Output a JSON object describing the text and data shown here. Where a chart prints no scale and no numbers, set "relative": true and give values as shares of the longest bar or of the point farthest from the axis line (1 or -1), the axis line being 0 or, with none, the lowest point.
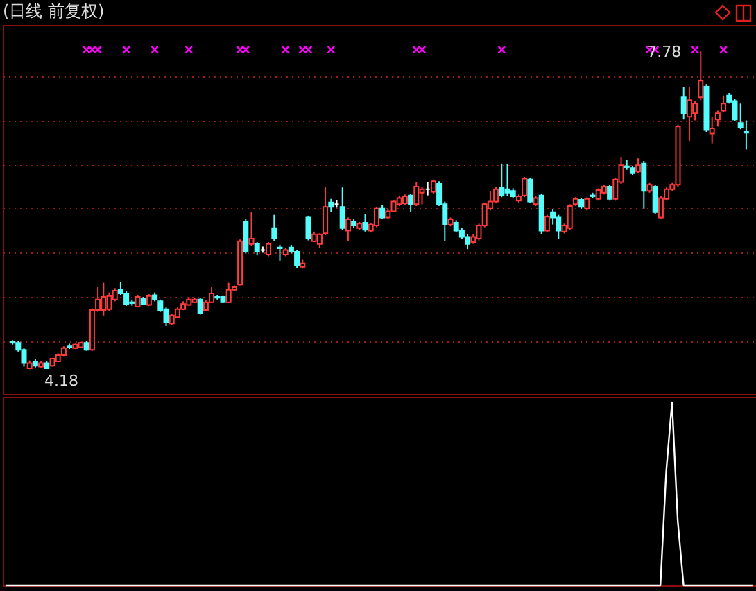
{
  "chart_data": [
    {
      "type": "candlestick",
      "title": "(日线 前复权)",
      "categories": [
        null,
        null,
        null,
        null,
        null,
        null,
        null,
        null,
        null,
        null,
        null,
        null,
        null,
        null,
        null,
        null,
        null,
        null,
        null,
        null,
        null,
        null,
        null,
        null,
        null,
        null,
        null,
        null,
        null,
        null,
        null,
        null,
        null,
        null,
        null,
        null,
        null,
        null,
        null,
        null,
        null,
        null,
        null,
        null,
        null,
        null,
        null,
        null,
        null,
        null,
        null,
        null,
        null,
        null,
        null,
        null,
        null,
        null,
        null,
        null,
        null,
        null,
        null,
        null,
        null,
        null,
        null,
        null,
        null,
        null,
        null,
        null,
        null,
        null,
        null,
        null,
        null,
        null,
        null,
        null,
        null,
        null,
        null,
        null,
        null,
        null,
        null,
        null,
        null,
        null,
        null,
        null,
        null,
        null,
        null,
        null,
        null,
        null,
        null,
        null,
        null,
        null,
        null,
        null,
        null,
        null,
        null,
        null,
        null,
        null,
        null,
        null,
        null,
        null,
        null,
        null,
        null,
        null,
        null,
        null,
        null,
        null,
        null,
        null,
        null,
        null,
        null,
        null,
        null,
        null
      ],
      "ohlc": [
        [
          4.49,
          4.51,
          4.46,
          4.48
        ],
        [
          4.48,
          4.5,
          4.38,
          4.4
        ],
        [
          4.4,
          4.42,
          4.21,
          4.25
        ],
        [
          4.19,
          4.28,
          4.18,
          4.25
        ],
        [
          4.27,
          4.3,
          4.2,
          4.22
        ],
        [
          4.21,
          4.27,
          4.2,
          4.25
        ],
        [
          4.25,
          4.27,
          4.19,
          4.19
        ],
        [
          4.22,
          4.31,
          4.21,
          4.3
        ],
        [
          4.27,
          4.36,
          4.26,
          4.34
        ],
        [
          4.34,
          4.44,
          4.33,
          4.42
        ],
        [
          4.44,
          4.47,
          4.41,
          4.43
        ],
        [
          4.42,
          4.47,
          4.41,
          4.46
        ],
        [
          4.43,
          4.49,
          4.42,
          4.48
        ],
        [
          4.48,
          4.5,
          4.39,
          4.4
        ],
        [
          4.4,
          4.87,
          4.39,
          4.85
        ],
        [
          4.85,
          5.11,
          4.83,
          4.97
        ],
        [
          4.85,
          5.16,
          4.79,
          5.0
        ],
        [
          4.86,
          5.05,
          4.84,
          5.01
        ],
        [
          4.97,
          5.1,
          4.95,
          5.07
        ],
        [
          5.08,
          5.17,
          5.02,
          5.04
        ],
        [
          5.04,
          5.07,
          4.9,
          4.92
        ],
        [
          4.94,
          4.97,
          4.9,
          4.93
        ],
        [
          4.89,
          5.02,
          4.88,
          5.0
        ],
        [
          4.98,
          5.0,
          4.91,
          4.92
        ],
        [
          4.91,
          5.03,
          4.9,
          5.01
        ],
        [
          5.02,
          5.05,
          4.95,
          4.97
        ],
        [
          4.95,
          4.97,
          4.83,
          4.85
        ],
        [
          4.86,
          4.88,
          4.67,
          4.71
        ],
        [
          4.7,
          4.81,
          4.68,
          4.79
        ],
        [
          4.77,
          4.88,
          4.76,
          4.86
        ],
        [
          4.86,
          4.95,
          4.85,
          4.92
        ],
        [
          4.91,
          5.0,
          4.9,
          4.97
        ],
        [
          4.94,
          4.99,
          4.93,
          4.97
        ],
        [
          4.97,
          4.99,
          4.8,
          4.82
        ],
        [
          4.85,
          4.96,
          4.84,
          4.94
        ],
        [
          4.94,
          5.11,
          4.93,
          5.04
        ],
        [
          5.0,
          5.02,
          4.97,
          4.99
        ],
        [
          5.0,
          5.01,
          4.93,
          4.94
        ],
        [
          4.94,
          5.16,
          4.93,
          5.08
        ],
        [
          5.08,
          5.13,
          5.07,
          5.11
        ],
        [
          5.14,
          5.65,
          5.13,
          5.63
        ],
        [
          5.85,
          5.88,
          5.49,
          5.51
        ],
        [
          5.6,
          5.96,
          5.58,
          5.66
        ],
        [
          5.6,
          5.62,
          5.47,
          5.51
        ],
        [
          5.53,
          5.57,
          5.5,
          5.53
        ],
        [
          5.48,
          5.62,
          5.46,
          5.6
        ],
        [
          5.78,
          5.93,
          5.63,
          5.66
        ],
        [
          5.56,
          5.59,
          5.41,
          5.55
        ],
        [
          5.48,
          5.55,
          5.46,
          5.53
        ],
        [
          5.56,
          5.59,
          5.49,
          5.51
        ],
        [
          5.51,
          5.53,
          5.33,
          5.36
        ],
        [
          5.34,
          5.42,
          5.32,
          5.38
        ],
        [
          5.9,
          5.92,
          5.64,
          5.66
        ],
        [
          5.63,
          5.74,
          5.62,
          5.71
        ],
        [
          5.6,
          5.72,
          5.55,
          5.71
        ],
        [
          5.72,
          6.24,
          5.7,
          6.02
        ],
        [
          6.07,
          6.11,
          5.96,
          6.02
        ],
        [
          6.05,
          6.1,
          6.01,
          6.05
        ],
        [
          6.02,
          6.24,
          5.76,
          5.78
        ],
        [
          5.75,
          5.9,
          5.63,
          5.88
        ],
        [
          5.85,
          5.88,
          5.78,
          5.81
        ],
        [
          5.78,
          5.85,
          5.76,
          5.83
        ],
        [
          5.84,
          5.94,
          5.74,
          5.76
        ],
        [
          5.75,
          5.84,
          5.73,
          5.82
        ],
        [
          5.81,
          6.02,
          5.79,
          6.0
        ],
        [
          6.0,
          6.04,
          5.88,
          5.9
        ],
        [
          5.9,
          5.99,
          5.88,
          5.97
        ],
        [
          5.97,
          6.1,
          5.96,
          6.08
        ],
        [
          6.05,
          6.14,
          6.03,
          6.12
        ],
        [
          6.06,
          6.16,
          6.04,
          6.14
        ],
        [
          6.15,
          6.17,
          5.96,
          6.05
        ],
        [
          6.05,
          6.3,
          6.03,
          6.25
        ],
        [
          6.18,
          6.25,
          6.05,
          6.22
        ],
        [
          6.22,
          6.3,
          6.15,
          6.22
        ],
        [
          6.19,
          6.33,
          6.17,
          6.31
        ],
        [
          6.28,
          6.31,
          6.03,
          6.05
        ],
        [
          6.05,
          6.08,
          5.63,
          5.82
        ],
        [
          5.82,
          5.9,
          5.8,
          5.88
        ],
        [
          5.84,
          5.87,
          5.73,
          5.75
        ],
        [
          5.75,
          5.78,
          5.66,
          5.68
        ],
        [
          5.68,
          5.71,
          5.54,
          5.6
        ],
        [
          5.62,
          5.71,
          5.6,
          5.68
        ],
        [
          5.66,
          5.83,
          5.64,
          5.81
        ],
        [
          5.81,
          6.07,
          5.79,
          6.05
        ],
        [
          6.0,
          6.2,
          5.98,
          6.08
        ],
        [
          6.08,
          6.25,
          6.06,
          6.22
        ],
        [
          6.24,
          6.51,
          6.13,
          6.15
        ],
        [
          6.22,
          6.51,
          6.14,
          6.18
        ],
        [
          6.2,
          6.23,
          6.12,
          6.14
        ],
        [
          6.09,
          6.16,
          6.07,
          6.14
        ],
        [
          6.15,
          6.36,
          6.13,
          6.34
        ],
        [
          6.33,
          6.35,
          6.06,
          6.08
        ],
        [
          6.05,
          6.14,
          6.03,
          6.12
        ],
        [
          6.15,
          6.17,
          5.71,
          5.75
        ],
        [
          5.75,
          5.93,
          5.73,
          5.91
        ],
        [
          5.96,
          5.99,
          5.82,
          5.9
        ],
        [
          5.9,
          5.93,
          5.66,
          5.75
        ],
        [
          5.74,
          5.83,
          5.72,
          5.81
        ],
        [
          5.78,
          6.05,
          5.76,
          6.03
        ],
        [
          6.05,
          6.13,
          6.03,
          6.11
        ],
        [
          6.1,
          6.12,
          6.0,
          6.02
        ],
        [
          6.0,
          6.13,
          5.98,
          6.11
        ],
        [
          6.15,
          6.18,
          6.12,
          6.14
        ],
        [
          6.11,
          6.23,
          6.09,
          6.21
        ],
        [
          6.18,
          6.27,
          6.16,
          6.25
        ],
        [
          6.25,
          6.27,
          6.09,
          6.11
        ],
        [
          6.11,
          6.35,
          6.09,
          6.33
        ],
        [
          6.3,
          6.58,
          6.28,
          6.49
        ],
        [
          6.48,
          6.55,
          6.44,
          6.47
        ],
        [
          6.46,
          6.48,
          6.38,
          6.4
        ],
        [
          6.42,
          6.57,
          6.4,
          6.49
        ],
        [
          6.51,
          6.54,
          6.0,
          6.2
        ],
        [
          6.2,
          6.29,
          6.18,
          6.27
        ],
        [
          6.25,
          6.27,
          5.94,
          5.96
        ],
        [
          5.9,
          6.14,
          5.88,
          6.12
        ],
        [
          6.11,
          6.24,
          6.09,
          6.22
        ],
        [
          6.22,
          6.29,
          6.2,
          6.27
        ],
        [
          6.27,
          6.95,
          6.25,
          6.93
        ],
        [
          7.26,
          7.38,
          7.01,
          7.08
        ],
        [
          7.04,
          7.38,
          6.77,
          7.23
        ],
        [
          7.08,
          7.22,
          7.0,
          7.19
        ],
        [
          7.26,
          7.78,
          7.23,
          7.45
        ],
        [
          7.38,
          7.41,
          6.87,
          6.89
        ],
        [
          6.85,
          7.04,
          6.74,
          6.91
        ],
        [
          7.01,
          7.11,
          6.93,
          7.08
        ],
        [
          7.11,
          7.28,
          7.09,
          7.19
        ],
        [
          7.28,
          7.31,
          7.19,
          7.21
        ],
        [
          7.22,
          7.24,
          6.99,
          7.01
        ],
        [
          6.97,
          7.19,
          6.9,
          6.92
        ],
        [
          6.87,
          7.0,
          6.67,
          6.86
        ]
      ],
      "series": [
        {
          "type": "scatter",
          "color": "#ff00ff",
          "values": [
            null,
            null,
            null,
            null,
            null,
            null,
            null,
            null,
            null,
            null,
            null,
            null,
            null,
            7.8,
            7.8,
            7.8,
            null,
            null,
            null,
            null,
            7.8,
            null,
            null,
            null,
            null,
            7.8,
            null,
            null,
            null,
            null,
            null,
            7.8,
            null,
            null,
            null,
            null,
            null,
            null,
            null,
            null,
            7.8,
            7.8,
            null,
            null,
            null,
            null,
            null,
            null,
            7.8,
            null,
            null,
            7.8,
            7.8,
            null,
            null,
            null,
            7.8,
            null,
            null,
            null,
            null,
            null,
            null,
            null,
            null,
            null,
            null,
            null,
            null,
            null,
            null,
            7.8,
            7.8,
            null,
            null,
            null,
            null,
            null,
            null,
            null,
            null,
            null,
            null,
            null,
            null,
            null,
            7.8,
            null,
            null,
            null,
            null,
            null,
            null,
            null,
            null,
            null,
            null,
            null,
            null,
            null,
            null,
            null,
            null,
            null,
            null,
            null,
            null,
            null,
            null,
            null,
            null,
            null,
            7.8,
            7.8,
            null,
            null,
            null,
            null,
            null,
            null,
            7.8,
            null,
            null,
            null,
            null,
            7.8,
            null,
            null,
            null,
            null
          ]
        }
      ],
      "marker": "cross",
      "ylim": [
        3.9,
        8.08
      ],
      "yticks": [
        {
          "value": 4.5,
          "label": null
        },
        {
          "value": 5,
          "label": null
        },
        {
          "value": 5.5,
          "label": null
        },
        {
          "value": 6,
          "label": null
        },
        {
          "value": 6.5,
          "label": null
        },
        {
          "value": 7,
          "label": null
        },
        {
          "value": 7.5,
          "label": null
        }
      ],
      "grid": "y",
      "tick_labels": false,
      "annotations": [
        {
          "text": "7.78",
          "y": 7.78
        },
        "4.18"
      ]
    },
    {
      "type": "line",
      "relative": true,
      "tick_labels": false,
      "categories": [
        null,
        null,
        null,
        null,
        null,
        null,
        null,
        null,
        null,
        null,
        null,
        null,
        null,
        null,
        null,
        null,
        null,
        null,
        null,
        null,
        null,
        null,
        null,
        null,
        null,
        null,
        null,
        null,
        null,
        null,
        null,
        null,
        null,
        null,
        null,
        null,
        null,
        null,
        null,
        null,
        null,
        null,
        null,
        null,
        null,
        null,
        null,
        null,
        null,
        null,
        null,
        null,
        null,
        null,
        null,
        null,
        null,
        null,
        null,
        null,
        null,
        null,
        null,
        null,
        null,
        null,
        null,
        null,
        null,
        null,
        null,
        null,
        null,
        null,
        null,
        null,
        null,
        null,
        null,
        null,
        null,
        null,
        null,
        null,
        null,
        null,
        null,
        null,
        null,
        null,
        null,
        null,
        null,
        null,
        null,
        null,
        null,
        null,
        null,
        null,
        null,
        null,
        null,
        null,
        null,
        null,
        null,
        null,
        null,
        null,
        null,
        null,
        null,
        null,
        null,
        null,
        null,
        null,
        null,
        null,
        null,
        null,
        null,
        null,
        null,
        null,
        null,
        null,
        null,
        null
      ],
      "series": [
        {
          "color": "#ffffff",
          "values": [
            0,
            0,
            0,
            0,
            0,
            0,
            0,
            0,
            0,
            0,
            0,
            0,
            0,
            0,
            0,
            0,
            0,
            0,
            0,
            0,
            0,
            0,
            0,
            0,
            0,
            0,
            0,
            0,
            0,
            0,
            0,
            0,
            0,
            0,
            0,
            0,
            0,
            0,
            0,
            0,
            0,
            0,
            0,
            0,
            0,
            0,
            0,
            0,
            0,
            0,
            0,
            0,
            0,
            0,
            0,
            0,
            0,
            0,
            0,
            0,
            0,
            0,
            0,
            0,
            0,
            0,
            0,
            0,
            0,
            0,
            0,
            0,
            0,
            0,
            0,
            0,
            0,
            0,
            0,
            0,
            0,
            0,
            0,
            0,
            0,
            0,
            0,
            0,
            0,
            0,
            0,
            0,
            0,
            0,
            0,
            0,
            0,
            0,
            0,
            0,
            0,
            0,
            0,
            0,
            0,
            0,
            0,
            0,
            0,
            0,
            0,
            0,
            0,
            0,
            0.62,
            1,
            0.35,
            0,
            0,
            0,
            0,
            0,
            0,
            0,
            0,
            0,
            0,
            0,
            0,
            0
          ]
        }
      ]
    }
  ]
}
